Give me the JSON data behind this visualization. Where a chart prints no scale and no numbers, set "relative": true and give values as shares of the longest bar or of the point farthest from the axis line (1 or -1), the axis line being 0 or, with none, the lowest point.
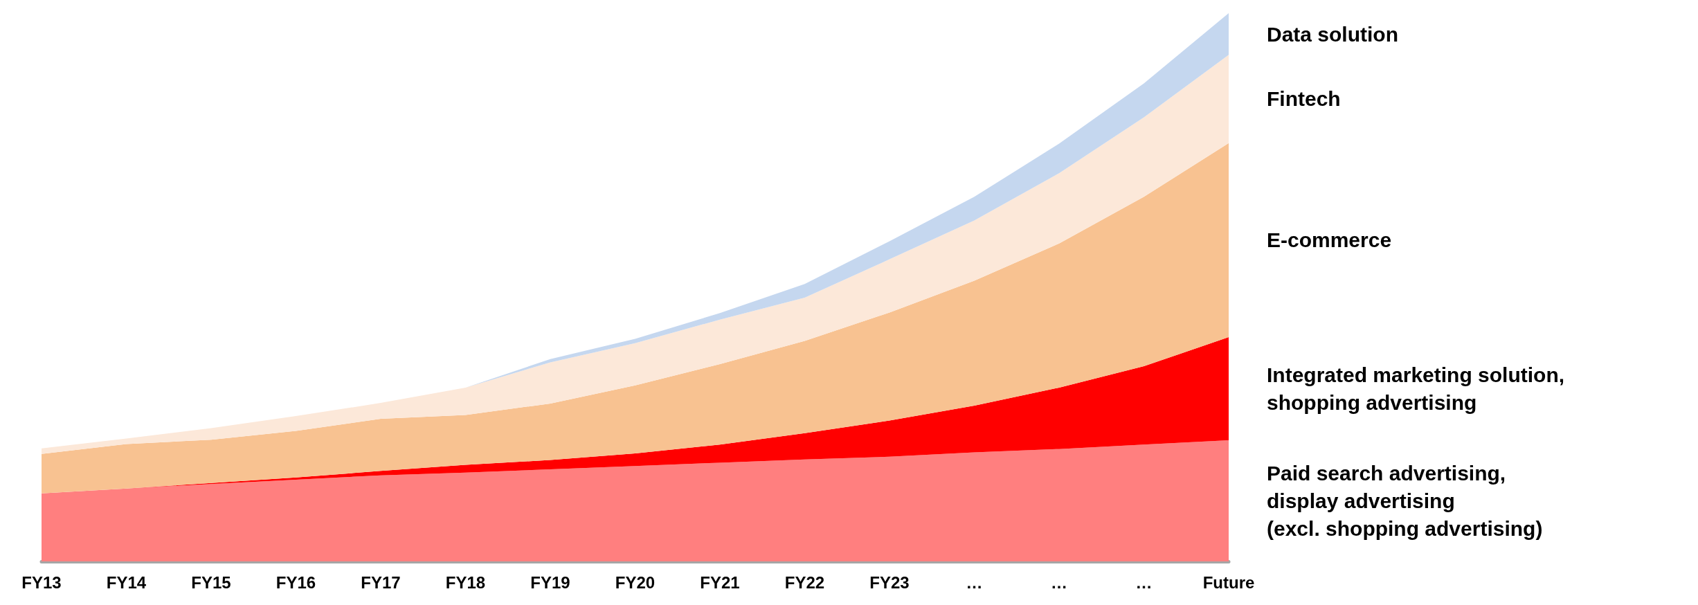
{
  "chart_data": {
    "type": "area",
    "stacked": true,
    "relative": true,
    "legend": false,
    "grid": false,
    "categories": [
      "FY13",
      "FY14",
      "FY15",
      "FY16",
      "FY17",
      "FY18",
      "FY19",
      "FY20",
      "FY21",
      "FY22",
      "FY23",
      "…",
      "…",
      "…",
      "Future"
    ],
    "series": [
      {
        "name": "Paid search advertising,\ndisplay advertising\n(excl. shopping advertising)",
        "color": "#ff7f7f",
        "values": [
          0.124,
          0.133,
          0.141,
          0.149,
          0.157,
          0.162,
          0.168,
          0.174,
          0.18,
          0.186,
          0.191,
          0.199,
          0.205,
          0.213,
          0.221
        ]
      },
      {
        "name": "Integrated marketing solution,\nshopping advertising",
        "color": "#ff0000",
        "values": [
          0,
          0,
          0.002,
          0.004,
          0.008,
          0.014,
          0.017,
          0.023,
          0.033,
          0.048,
          0.066,
          0.085,
          0.112,
          0.143,
          0.188
        ]
      },
      {
        "name": "E-commerce",
        "color": "#f8c291",
        "values": [
          0.072,
          0.081,
          0.079,
          0.085,
          0.095,
          0.091,
          0.103,
          0.124,
          0.147,
          0.168,
          0.197,
          0.228,
          0.263,
          0.309,
          0.354
        ]
      },
      {
        "name": "Fintech",
        "color": "#fce8d9",
        "values": [
          0.01,
          0.01,
          0.021,
          0.027,
          0.029,
          0.05,
          0.075,
          0.077,
          0.081,
          0.079,
          0.097,
          0.11,
          0.128,
          0.145,
          0.161
        ]
      },
      {
        "name": "Data solution",
        "color": "#c5d7ef",
        "values": [
          0,
          0,
          0,
          0,
          0,
          0,
          0.006,
          0.008,
          0.012,
          0.025,
          0.033,
          0.043,
          0.054,
          0.062,
          0.076
        ]
      }
    ]
  }
}
